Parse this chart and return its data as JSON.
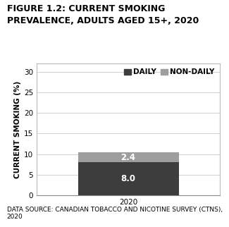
{
  "title_line1": "FIGURE 1.2: CURRENT SMOKING",
  "title_line2": "PREVALENCE, ADULTS AGED 15+, 2020",
  "categories": [
    "2020"
  ],
  "daily_values": [
    8.0
  ],
  "nondaily_values": [
    2.4
  ],
  "daily_color": "#3d3d3d",
  "nondaily_color": "#9e9e9e",
  "ylabel": "CURRENT SMOKING (%)",
  "ylim": [
    0,
    32
  ],
  "yticks": [
    0,
    5,
    10,
    15,
    20,
    25,
    30
  ],
  "legend_daily": "DAILY",
  "legend_nondaily": "NON-DAILY",
  "bar_width": 0.55,
  "footnote_line1": "DATA SOURCE: CANADIAN TOBACCO AND NICOTINE SURVEY (CTNS),",
  "footnote_line2": "2020",
  "grid_color": "#d0d0d0",
  "title_fontsize": 9.0,
  "tick_fontsize": 7.5,
  "ylabel_fontsize": 7.5,
  "footnote_fontsize": 6.5,
  "value_fontsize": 8.5,
  "legend_fontsize": 7.5
}
